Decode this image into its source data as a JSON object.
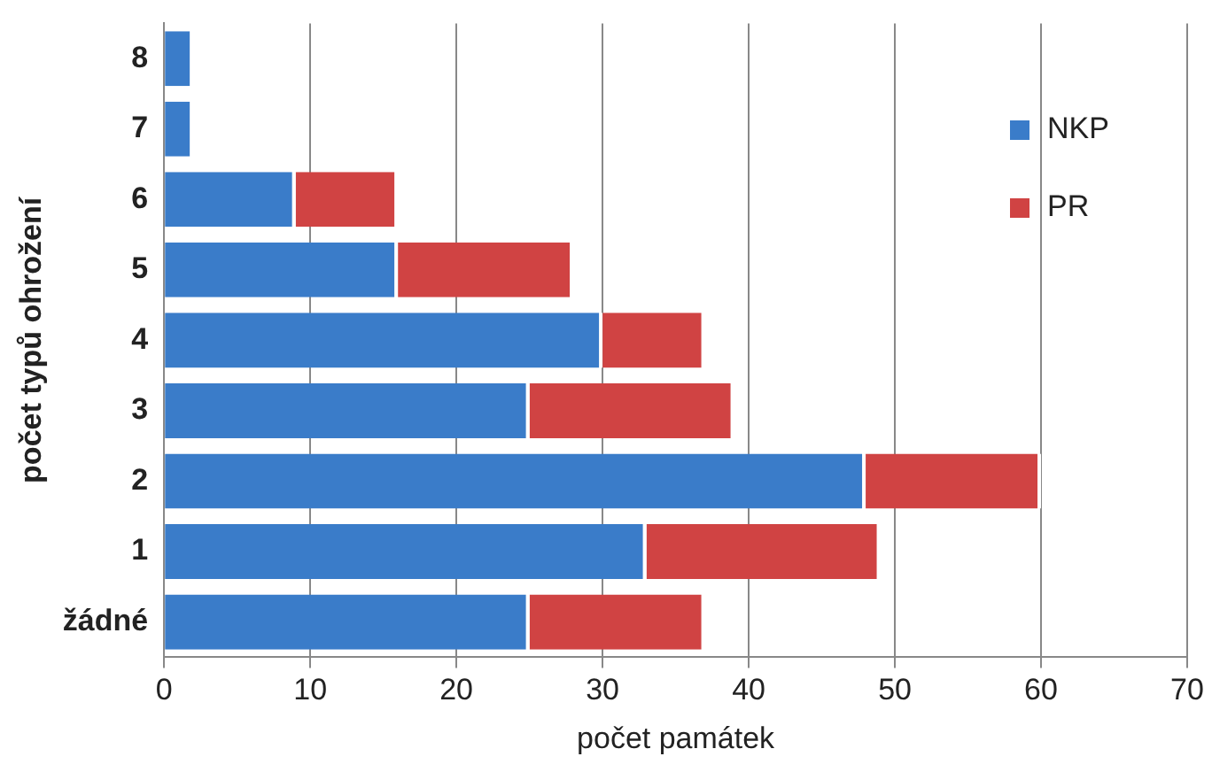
{
  "chart_data": {
    "type": "bar",
    "orientation": "horizontal",
    "stacked": true,
    "xlabel": "počet památek",
    "ylabel": "počet typů ohrožení",
    "categories": [
      "8",
      "7",
      "6",
      "5",
      "4",
      "3",
      "2",
      "1",
      "žádné"
    ],
    "series": [
      {
        "name": "NKP",
        "color": "#3a7cc9",
        "values": [
          2,
          2,
          9,
          16,
          30,
          25,
          48,
          33,
          25
        ]
      },
      {
        "name": "PR",
        "color": "#d04343",
        "values": [
          0,
          0,
          7,
          12,
          7,
          14,
          12,
          16,
          12
        ]
      }
    ],
    "xlim": [
      0,
      70
    ],
    "xticks": [
      0,
      10,
      20,
      30,
      40,
      50,
      60,
      70
    ],
    "grid": "x",
    "legend": "top right"
  }
}
